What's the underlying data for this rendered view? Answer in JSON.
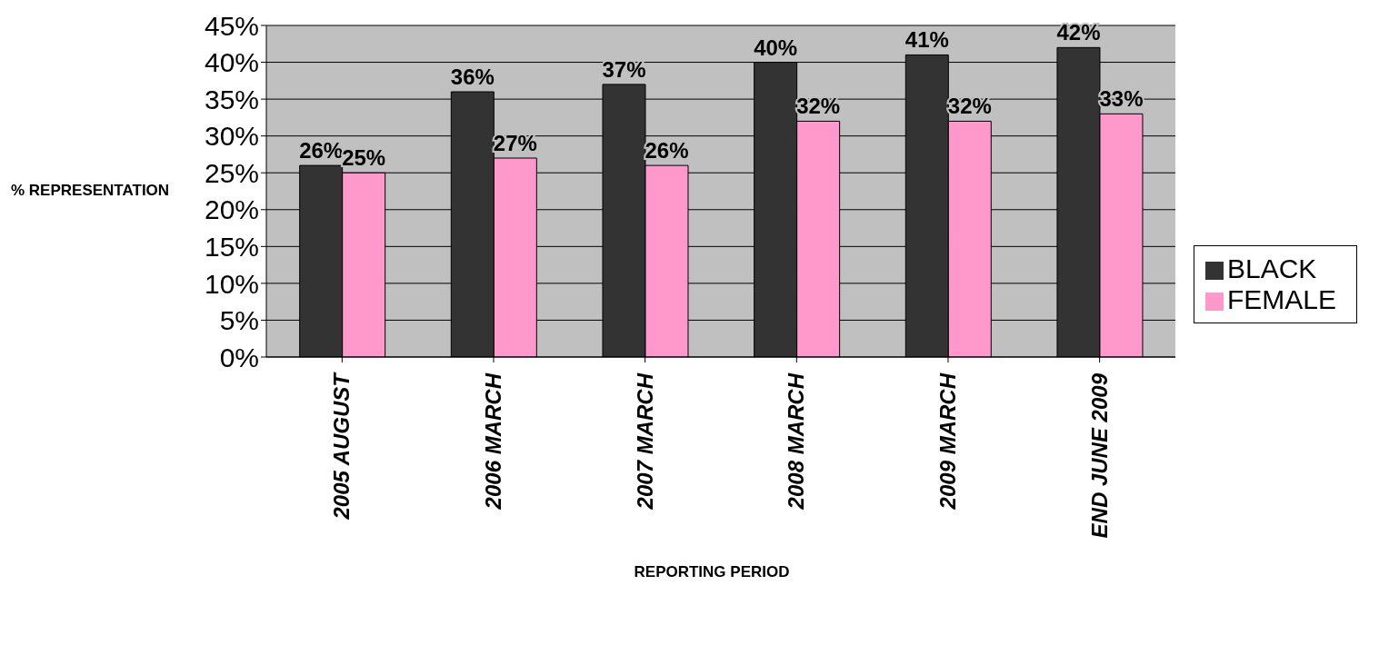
{
  "chart_data": {
    "type": "bar",
    "xlabel": "REPORTING PERIOD",
    "ylabel": "% REPRESENTATION",
    "categories": [
      "2005 AUGUST",
      "2006 MARCH",
      "2007 MARCH",
      "2008 MARCH",
      "2009 MARCH",
      "END JUNE 2009"
    ],
    "series": [
      {
        "name": "BLACK",
        "color": "#333333",
        "values": [
          26,
          36,
          37,
          40,
          41,
          42
        ],
        "value_labels": [
          "26%",
          "36%",
          "37%",
          "40%",
          "41%",
          "42%"
        ]
      },
      {
        "name": "FEMALE",
        "color": "#ff99cc",
        "values": [
          25,
          27,
          26,
          32,
          32,
          33
        ],
        "value_labels": [
          "25%",
          "27%",
          "26%",
          "32%",
          "32%",
          "33%"
        ]
      }
    ],
    "ylim": [
      0,
      45
    ],
    "yticks": [
      {
        "value": 0,
        "label": "0%"
      },
      {
        "value": 5,
        "label": "5%"
      },
      {
        "value": 10,
        "label": "10%"
      },
      {
        "value": 15,
        "label": "15%"
      },
      {
        "value": 20,
        "label": "20%"
      },
      {
        "value": 25,
        "label": "25%"
      },
      {
        "value": 30,
        "label": "30%"
      },
      {
        "value": 35,
        "label": "35%"
      },
      {
        "value": 40,
        "label": "40%"
      },
      {
        "value": 45,
        "label": "45%"
      }
    ],
    "grid": "y",
    "legend": "right"
  }
}
